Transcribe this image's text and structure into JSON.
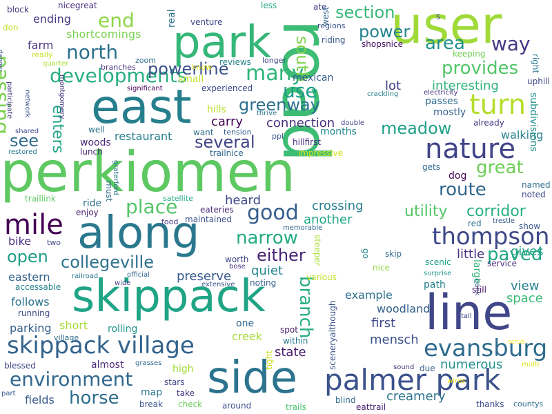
{
  "words": [
    {
      "text": "road",
      "color": "#3dbc74"
    },
    {
      "text": "perkiomen",
      "color": "#5ec962"
    },
    {
      "text": "park",
      "color": "#35b779"
    },
    {
      "text": "user",
      "color": "#a0da39"
    },
    {
      "text": "east",
      "color": "#277f8e"
    },
    {
      "text": "along",
      "color": "#2a788e"
    },
    {
      "text": "skippack",
      "color": "#20a486"
    },
    {
      "text": "line",
      "color": "#404688"
    },
    {
      "text": "side",
      "color": "#2c738e"
    },
    {
      "text": "palmer park",
      "color": "#3b528b"
    },
    {
      "text": "skippack village",
      "color": "#33638d"
    },
    {
      "text": "nature",
      "color": "#414487"
    },
    {
      "text": "turn",
      "color": "#b5de2b"
    },
    {
      "text": "mile",
      "color": "#440154"
    },
    {
      "text": "environment",
      "color": "#31688e"
    },
    {
      "text": "thompson",
      "color": "#3e4989"
    },
    {
      "text": "evansburg",
      "color": "#2f6c8e"
    },
    {
      "text": "developments",
      "color": "#29af7f"
    },
    {
      "text": "north",
      "color": "#2d708e"
    },
    {
      "text": "passing",
      "color": "#7ad151"
    },
    {
      "text": "many",
      "color": "#31b57b"
    },
    {
      "text": "collegeville",
      "color": "#2c728e"
    },
    {
      "text": "powerline",
      "color": "#3b528b"
    },
    {
      "text": "section",
      "color": "#37b878"
    },
    {
      "text": "power",
      "color": "#25838e"
    },
    {
      "text": "end",
      "color": "#8ed645"
    },
    {
      "text": "way",
      "color": "#443a83"
    },
    {
      "text": "area",
      "color": "#21918c"
    },
    {
      "text": "provides",
      "color": "#52c569"
    },
    {
      "text": "greenway",
      "color": "#2d708e"
    },
    {
      "text": "use",
      "color": "#1e9b8a"
    },
    {
      "text": "meadow",
      "color": "#1fa188"
    },
    {
      "text": "place",
      "color": "#54c568"
    },
    {
      "text": "great",
      "color": "#6ece58"
    },
    {
      "text": "route",
      "color": "#31688e"
    },
    {
      "text": "good",
      "color": "#355f8d"
    },
    {
      "text": "narrow",
      "color": "#25ab82"
    },
    {
      "text": "either",
      "color": "#482374"
    },
    {
      "text": "horse",
      "color": "#2e6e8e"
    },
    {
      "text": "paved",
      "color": "#22a884"
    },
    {
      "text": "branch",
      "color": "#26ad81"
    },
    {
      "text": "south",
      "color": "#7fd34e"
    },
    {
      "text": "several",
      "color": "#414487"
    },
    {
      "text": "corridor",
      "color": "#29af7f"
    },
    {
      "text": "utility",
      "color": "#54c568"
    },
    {
      "text": "see",
      "color": "#2f6c8e"
    },
    {
      "text": "open",
      "color": "#1f9e89"
    },
    {
      "text": "enters",
      "color": "#20a386"
    },
    {
      "text": "interesting",
      "color": "#2db27d"
    },
    {
      "text": "connection",
      "color": "#472d7b"
    },
    {
      "text": "crossing",
      "color": "#277f8e"
    },
    {
      "text": "quiet",
      "color": "#24868e"
    },
    {
      "text": "preserve",
      "color": "#38598c"
    },
    {
      "text": "little",
      "color": "#46317e"
    },
    {
      "text": "gives",
      "color": "#20a386"
    },
    {
      "text": "view",
      "color": "#277f8e"
    },
    {
      "text": "space",
      "color": "#3aba76"
    },
    {
      "text": "first",
      "color": "#3e4989"
    },
    {
      "text": "mensch",
      "color": "#3b528b"
    },
    {
      "text": "state",
      "color": "#48186a"
    },
    {
      "text": "numerous",
      "color": "#21918c"
    },
    {
      "text": "creamery",
      "color": "#2c738e"
    },
    {
      "text": "lot",
      "color": "#433e85"
    },
    {
      "text": "heard",
      "color": "#3e4989"
    },
    {
      "text": "another",
      "color": "#22a884"
    },
    {
      "text": "carry",
      "color": "#440154"
    },
    {
      "text": "walking",
      "color": "#26828e"
    },
    {
      "text": "example",
      "color": "#2d708e"
    },
    {
      "text": "woodland",
      "color": "#34608d"
    },
    {
      "text": "creek",
      "color": "#a5db36"
    },
    {
      "text": "follows",
      "color": "#2c738e"
    },
    {
      "text": "short",
      "color": "#a8db34"
    },
    {
      "text": "eastern",
      "color": "#33638d"
    },
    {
      "text": "bike",
      "color": "#46317e"
    },
    {
      "text": "parking",
      "color": "#355f8d"
    },
    {
      "text": "fields",
      "color": "#38598c"
    },
    {
      "text": "farm",
      "color": "#46327e"
    },
    {
      "text": "ending",
      "color": "#443983"
    },
    {
      "text": "shortcomings",
      "color": "#7ad151"
    },
    {
      "text": "nicegreat",
      "color": "#472f7d"
    },
    {
      "text": "block",
      "color": "#453781"
    },
    {
      "text": "reviews",
      "color": "#26828e"
    },
    {
      "text": "experienced",
      "color": "#3f4788"
    },
    {
      "text": "small",
      "color": "#bddf26"
    },
    {
      "text": "mexican",
      "color": "#365d8d"
    },
    {
      "text": "riding",
      "color": "#38598c"
    },
    {
      "text": "shopsnice",
      "color": "#471063"
    },
    {
      "text": "regions",
      "color": "#3b528b"
    },
    {
      "text": "keeping",
      "color": "#73d056"
    },
    {
      "text": "passes",
      "color": "#2f6c8e"
    },
    {
      "text": "mostly",
      "color": "#355f8d"
    },
    {
      "text": "already",
      "color": "#453781"
    },
    {
      "text": "named",
      "color": "#2e6e8e"
    },
    {
      "text": "noted",
      "color": "#3e4989"
    },
    {
      "text": "dog",
      "color": "#440154"
    },
    {
      "text": "gets",
      "color": "#31688e"
    },
    {
      "text": "restaurant",
      "color": "#277f8e"
    },
    {
      "text": "woods",
      "color": "#482878"
    },
    {
      "text": "lunch",
      "color": "#482374"
    },
    {
      "text": "well",
      "color": "#2c728e"
    },
    {
      "text": "months",
      "color": "#23898e"
    },
    {
      "text": "hillfirst",
      "color": "#46317e"
    },
    {
      "text": "ride",
      "color": "#2d708e"
    },
    {
      "text": "enjoy",
      "color": "#481f70"
    },
    {
      "text": "maintained",
      "color": "#3b528b"
    },
    {
      "text": "eateries",
      "color": "#472c7a"
    },
    {
      "text": "food",
      "color": "#443983"
    },
    {
      "text": "two",
      "color": "#3f4788"
    },
    {
      "text": "one",
      "color": "#31688e"
    },
    {
      "text": "noting",
      "color": "#34608d"
    },
    {
      "text": "worth",
      "color": "#404688"
    },
    {
      "text": "railroad",
      "color": "#2a788e"
    },
    {
      "text": "official",
      "color": "#33638d"
    },
    {
      "text": "wide",
      "color": "#424186"
    },
    {
      "text": "extensive",
      "color": "#3a548c"
    },
    {
      "text": "various",
      "color": "#c2df23"
    },
    {
      "text": "running",
      "color": "#3f4788"
    },
    {
      "text": "village",
      "color": "#2f6c8e"
    },
    {
      "text": "rolling",
      "color": "#1f958b"
    },
    {
      "text": "almost",
      "color": "#482878"
    },
    {
      "text": "high",
      "color": "#a2da37"
    },
    {
      "text": "map",
      "color": "#2b758e"
    },
    {
      "text": "stars",
      "color": "#404688"
    },
    {
      "text": "take",
      "color": "#453781"
    },
    {
      "text": "break",
      "color": "#3a548c"
    },
    {
      "text": "check",
      "color": "#6ccd5a"
    },
    {
      "text": "around",
      "color": "#3b528b"
    },
    {
      "text": "trails",
      "color": "#4ac16d"
    },
    {
      "text": "blind",
      "color": "#31688e"
    },
    {
      "text": "eattrail",
      "color": "#481f70"
    },
    {
      "text": "thanks",
      "color": "#3e4989"
    },
    {
      "text": "countys",
      "color": "#2e6e8e"
    },
    {
      "text": "blessed",
      "color": "#404688"
    },
    {
      "text": "spot",
      "color": "#48186a"
    },
    {
      "text": "within",
      "color": "#2a788e"
    },
    {
      "text": "sound",
      "color": "#46327e"
    },
    {
      "text": "due",
      "color": "#365d8d"
    },
    {
      "text": "multi",
      "color": "#d8e219"
    },
    {
      "text": "wires",
      "color": "#f1e51d"
    },
    {
      "text": "scrub",
      "color": "#fde725"
    },
    {
      "text": "part",
      "color": "#38598c"
    },
    {
      "text": "grasses",
      "color": "#31688e"
    },
    {
      "text": "tight",
      "color": "#cae11f"
    },
    {
      "text": "sceneryalthough",
      "color": "#3b528b"
    },
    {
      "text": "skip",
      "color": "#2f6c8e"
    },
    {
      "text": "go",
      "color": "#26828e"
    },
    {
      "text": "nice",
      "color": "#93d741"
    },
    {
      "text": "scenic",
      "color": "#20a386"
    },
    {
      "text": "surprise",
      "color": "#1f9a8a"
    },
    {
      "text": "bank",
      "color": "#3b528b"
    },
    {
      "text": "tall",
      "color": "#404688"
    },
    {
      "text": "steeper",
      "color": "#aadc32"
    },
    {
      "text": "bose",
      "color": "#472f7d"
    },
    {
      "text": "memorable",
      "color": "#31688e"
    },
    {
      "text": "red",
      "color": "#2d708e"
    },
    {
      "text": "show",
      "color": "#38598c"
    },
    {
      "text": "large",
      "color": "#31b57b"
    },
    {
      "text": "path",
      "color": "#26828e"
    },
    {
      "text": "service",
      "color": "#482878"
    },
    {
      "text": "still",
      "color": "#471063"
    },
    {
      "text": "trestle",
      "color": "#355f8d"
    },
    {
      "text": "satellite",
      "color": "#22a884"
    },
    {
      "text": "traillink",
      "color": "#5ec962"
    },
    {
      "text": "must",
      "color": "#2e6e8e"
    },
    {
      "text": "graterford",
      "color": "#2a788e"
    },
    {
      "text": "restored",
      "color": "#2a788e"
    },
    {
      "text": "shared",
      "color": "#3e4989"
    },
    {
      "text": "participate",
      "color": "#433e85"
    },
    {
      "text": "network",
      "color": "#3a548c"
    },
    {
      "text": "montgomery",
      "color": "#453781"
    },
    {
      "text": "trailnice",
      "color": "#31688e"
    },
    {
      "text": "ppl",
      "color": "#3b528b"
    },
    {
      "text": "tension",
      "color": "#34608d"
    },
    {
      "text": "want",
      "color": "#2f6c8e"
    },
    {
      "text": "thrive",
      "color": "#2c728e"
    },
    {
      "text": "impressive",
      "color": "#d2e21b"
    },
    {
      "text": "double",
      "color": "#424186"
    },
    {
      "text": "hills",
      "color": "#bade28"
    },
    {
      "text": "crackling",
      "color": "#26828e"
    },
    {
      "text": "electricity",
      "color": "#46337f"
    },
    {
      "text": "uphill",
      "color": "#404688"
    },
    {
      "text": "right",
      "color": "#2a788e"
    },
    {
      "text": "subdivisions",
      "color": "#21918c"
    },
    {
      "text": "significant",
      "color": "#440154"
    },
    {
      "text": "branches",
      "color": "#453781"
    },
    {
      "text": "zoom",
      "color": "#2f6c8e"
    },
    {
      "text": "know",
      "color": "#e2e418"
    },
    {
      "text": "longer",
      "color": "#3e4989"
    },
    {
      "text": "real",
      "color": "#2c728e"
    },
    {
      "text": "venture",
      "color": "#3e4989"
    },
    {
      "text": "less",
      "color": "#22a884"
    },
    {
      "text": "ate",
      "color": "#424186"
    },
    {
      "text": "west",
      "color": "#31688e"
    },
    {
      "text": "s",
      "color": "#433e85"
    },
    {
      "text": "quarter",
      "color": "#a8db34"
    },
    {
      "text": "danger",
      "color": "#3a548c"
    },
    {
      "text": "don",
      "color": "#bddf26"
    },
    {
      "text": "really",
      "color": "#c8e020"
    },
    {
      "text": "accessable",
      "color": "#26828e"
    }
  ]
}
